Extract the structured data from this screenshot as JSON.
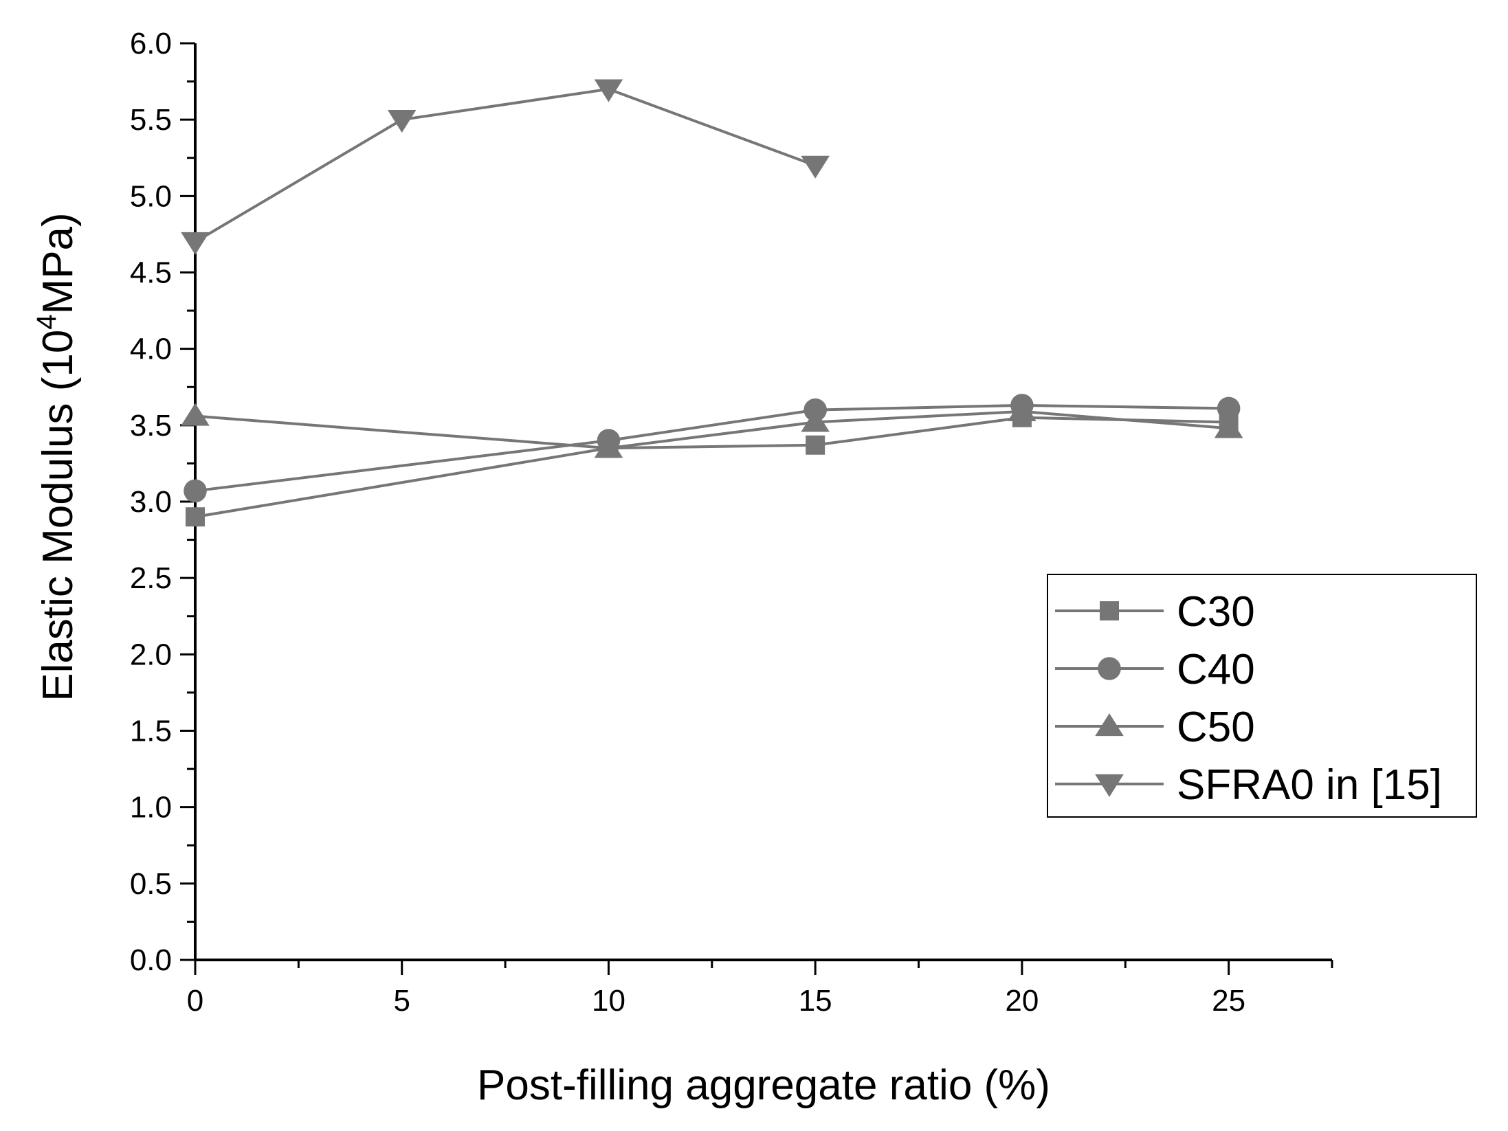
{
  "chart_data": {
    "type": "line",
    "title": "",
    "xlabel": "Post-filling aggregate ratio (%)",
    "ylabel": {
      "before": "Elastic Modulus (10",
      "sup": "4",
      "after": "MPa)"
    },
    "xlim": [
      0,
      27.5
    ],
    "ylim": [
      0,
      6.0
    ],
    "x_ticks": [
      0,
      5,
      10,
      15,
      20,
      25
    ],
    "x_tick_labels": [
      "0",
      "5",
      "10",
      "15",
      "20",
      "25"
    ],
    "x_minor_ticks": [
      2.5,
      7.5,
      12.5,
      17.5,
      22.5,
      27.5
    ],
    "y_ticks": [
      0.0,
      0.5,
      1.0,
      1.5,
      2.0,
      2.5,
      3.0,
      3.5,
      4.0,
      4.5,
      5.0,
      5.5,
      6.0
    ],
    "y_tick_labels": [
      "0.0",
      "0.5",
      "1.0",
      "1.5",
      "2.0",
      "2.5",
      "3.0",
      "3.5",
      "4.0",
      "4.5",
      "5.0",
      "5.5",
      "6.0"
    ],
    "grid": false,
    "legend_position": "center-right",
    "series_color": "#767676",
    "axis_color": "#000000",
    "series": [
      {
        "name": "C30",
        "marker": "square",
        "x": [
          0,
          10,
          15,
          20,
          25
        ],
        "y": [
          2.9,
          3.35,
          3.37,
          3.55,
          3.52
        ]
      },
      {
        "name": "C40",
        "marker": "circle",
        "x": [
          0,
          10,
          15,
          20,
          25
        ],
        "y": [
          3.07,
          3.4,
          3.6,
          3.63,
          3.61
        ]
      },
      {
        "name": "C50",
        "marker": "triangle-up",
        "x": [
          0,
          10,
          15,
          20,
          25
        ],
        "y": [
          3.56,
          3.35,
          3.52,
          3.59,
          3.48
        ]
      },
      {
        "name": "SFRA0 in [15]",
        "marker": "triangle-down",
        "x": [
          0,
          5,
          10,
          15
        ],
        "y": [
          4.7,
          5.5,
          5.7,
          5.2
        ]
      }
    ]
  }
}
